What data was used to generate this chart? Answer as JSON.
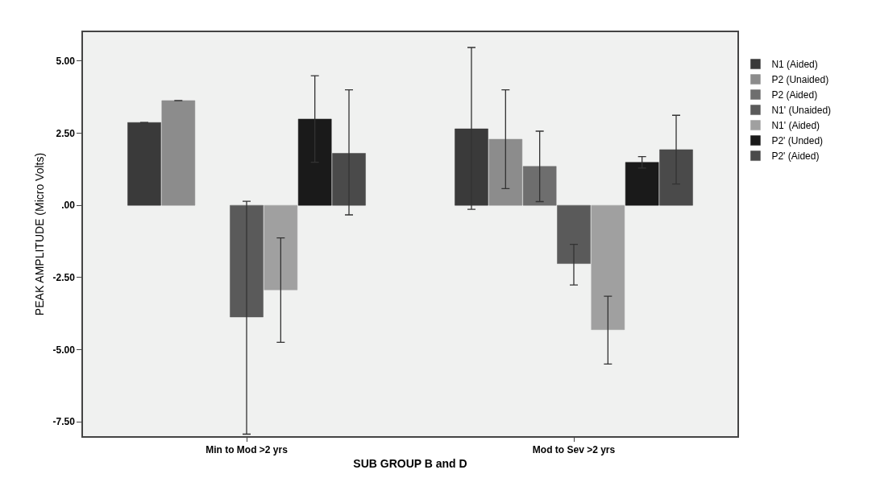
{
  "chart_data": {
    "type": "bar",
    "xlabel": "SUB GROUP B and D",
    "ylabel": "PEAK AMPLITUDE (Micro Volts)",
    "categories": [
      "Min to Mod >2 yrs",
      "Mod to Sev >2 yrs"
    ],
    "series": [
      {
        "name": "N1 (Aided)",
        "color": "#3a3a3a",
        "values": [
          2.87,
          2.65
        ],
        "errors": [
          null,
          [
            -0.14,
            5.47
          ]
        ]
      },
      {
        "name": "P2 (Unaided)",
        "color": "#8c8c8c",
        "values": [
          3.63,
          2.29
        ],
        "errors": [
          null,
          [
            0.58,
            4.0
          ]
        ]
      },
      {
        "name": "P2 (Aided)",
        "color": "#6e6e6e",
        "values": [
          null,
          1.35
        ],
        "errors": [
          null,
          [
            0.13,
            2.57
          ]
        ]
      },
      {
        "name": "N1' (Unaided)",
        "color": "#5a5a5a",
        "values": [
          -3.87,
          -2.02
        ],
        "errors": [
          [
            -7.93,
            0.14
          ],
          [
            -2.76,
            -1.35
          ]
        ]
      },
      {
        "name": "N1' (Aided)",
        "color": "#a0a0a0",
        "values": [
          -2.93,
          -4.31
        ],
        "errors": [
          [
            -4.75,
            -1.13
          ],
          [
            -5.5,
            -3.15
          ]
        ]
      },
      {
        "name": "P2' (Unded)",
        "color": "#1a1a1a",
        "values": [
          2.99,
          1.49
        ],
        "errors": [
          [
            1.49,
            4.49
          ],
          [
            1.29,
            1.69
          ]
        ]
      },
      {
        "name": "P2' (Aided)",
        "color": "#4a4a4a",
        "values": [
          1.8,
          1.93
        ],
        "errors": [
          [
            -0.33,
            4.0
          ],
          [
            0.74,
            3.12
          ]
        ]
      }
    ],
    "ylim": [
      -8,
      6
    ],
    "yticks": [
      {
        "value": 5,
        "label": "5.00"
      },
      {
        "value": 2.5,
        "label": "2.50"
      },
      {
        "value": 0,
        "label": ".00"
      },
      {
        "value": -2.5,
        "label": "-2.50"
      },
      {
        "value": -5,
        "label": "-5.00"
      },
      {
        "value": -7.5,
        "label": "-7.50"
      }
    ],
    "legend": "top right",
    "grid": false
  }
}
